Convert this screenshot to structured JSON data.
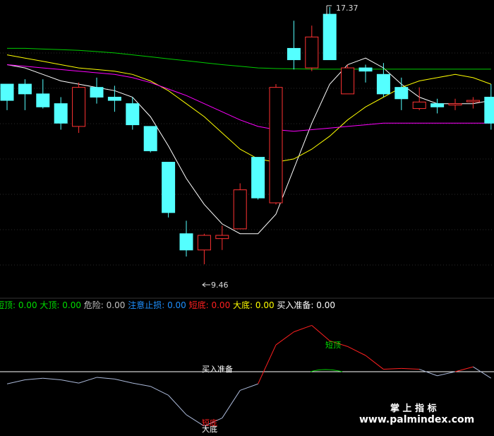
{
  "chart_data": {
    "type": "candlestick",
    "grid": "horizontal dotted",
    "price_range": [
      9.0,
      17.7
    ],
    "annotations": {
      "high_label": "17.37",
      "low_label": "9.46"
    },
    "candles": [
      {
        "o": 15.0,
        "h": 15.0,
        "l": 14.2,
        "c": 14.5
      },
      {
        "o": 15.0,
        "h": 15.15,
        "l": 14.2,
        "c": 14.7
      },
      {
        "o": 14.7,
        "h": 15.15,
        "l": 14.25,
        "c": 14.3
      },
      {
        "o": 14.4,
        "h": 14.6,
        "l": 13.6,
        "c": 13.8
      },
      {
        "o": 13.7,
        "h": 15.05,
        "l": 13.5,
        "c": 14.9
      },
      {
        "o": 14.9,
        "h": 15.2,
        "l": 14.4,
        "c": 14.6
      },
      {
        "o": 14.6,
        "h": 14.95,
        "l": 14.15,
        "c": 14.5
      },
      {
        "o": 14.4,
        "h": 14.6,
        "l": 13.6,
        "c": 13.75
      },
      {
        "o": 13.7,
        "h": 13.7,
        "l": 12.9,
        "c": 12.95
      },
      {
        "o": 12.6,
        "h": 12.6,
        "l": 10.9,
        "c": 11.05
      },
      {
        "o": 10.4,
        "h": 10.8,
        "l": 9.7,
        "c": 9.9
      },
      {
        "o": 9.9,
        "h": 10.4,
        "l": 9.46,
        "c": 10.35
      },
      {
        "o": 10.25,
        "h": 10.65,
        "l": 9.9,
        "c": 10.35
      },
      {
        "o": 10.55,
        "h": 11.95,
        "l": 10.55,
        "c": 11.75
      },
      {
        "o": 12.75,
        "h": 12.75,
        "l": 11.45,
        "c": 11.5
      },
      {
        "o": 11.35,
        "h": 15.0,
        "l": 11.3,
        "c": 14.9
      },
      {
        "o": 16.1,
        "h": 16.95,
        "l": 15.45,
        "c": 15.75
      },
      {
        "o": 15.5,
        "h": 16.8,
        "l": 15.4,
        "c": 16.45
      },
      {
        "o": 17.15,
        "h": 17.37,
        "l": 15.75,
        "c": 15.75
      },
      {
        "o": 14.7,
        "h": 15.6,
        "l": 14.7,
        "c": 15.5
      },
      {
        "o": 15.5,
        "h": 15.6,
        "l": 15.05,
        "c": 15.4
      },
      {
        "o": 15.3,
        "h": 15.65,
        "l": 14.6,
        "c": 14.7
      },
      {
        "o": 14.9,
        "h": 15.2,
        "l": 14.2,
        "c": 14.55
      },
      {
        "o": 14.25,
        "h": 14.9,
        "l": 14.2,
        "c": 14.45
      },
      {
        "o": 14.4,
        "h": 14.55,
        "l": 14.1,
        "c": 14.3
      },
      {
        "o": 14.4,
        "h": 14.55,
        "l": 14.2,
        "c": 14.4
      },
      {
        "o": 14.5,
        "h": 14.6,
        "l": 14.25,
        "c": 14.5
      },
      {
        "o": 14.6,
        "h": 15.0,
        "l": 13.6,
        "c": 13.8
      }
    ],
    "moving_averages": [
      {
        "color": "#ffffff",
        "values": [
          15.6,
          15.5,
          15.3,
          15.1,
          15.0,
          14.9,
          14.8,
          14.6,
          14.0,
          13.1,
          12.1,
          11.3,
          10.7,
          10.4,
          10.4,
          11.0,
          12.4,
          13.8,
          15.0,
          15.6,
          15.8,
          15.5,
          15.0,
          14.6,
          14.4,
          14.4,
          14.4,
          14.5
        ]
      },
      {
        "color": "#ffff00",
        "values": [
          15.9,
          15.8,
          15.7,
          15.6,
          15.5,
          15.45,
          15.4,
          15.3,
          15.1,
          14.8,
          14.4,
          14.0,
          13.5,
          13.0,
          12.7,
          12.6,
          12.7,
          13.0,
          13.4,
          13.9,
          14.3,
          14.6,
          14.9,
          15.1,
          15.2,
          15.3,
          15.2,
          15.0
        ]
      },
      {
        "color": "#ff00ff",
        "values": [
          15.6,
          15.55,
          15.5,
          15.45,
          15.4,
          15.35,
          15.3,
          15.2,
          15.05,
          14.85,
          14.65,
          14.4,
          14.15,
          13.9,
          13.7,
          13.6,
          13.55,
          13.6,
          13.65,
          13.7,
          13.75,
          13.8,
          13.8,
          13.8,
          13.8,
          13.8,
          13.8,
          13.8
        ]
      },
      {
        "color": "#00cc00",
        "values": [
          16.1,
          16.1,
          16.08,
          16.06,
          16.04,
          16.0,
          15.96,
          15.9,
          15.84,
          15.78,
          15.72,
          15.66,
          15.6,
          15.55,
          15.5,
          15.48,
          15.47,
          15.46,
          15.46,
          15.46,
          15.46,
          15.46,
          15.46,
          15.46,
          15.46,
          15.46,
          15.46,
          15.46
        ]
      }
    ],
    "indicator": {
      "legend": [
        {
          "label": "短顶: ",
          "value": "0.00",
          "color": "#00dd00"
        },
        {
          "label": "大顶: ",
          "value": "0.00",
          "color": "#00dd00"
        },
        {
          "label": "危险: ",
          "value": "0.00",
          "color": "#c0c0c0"
        },
        {
          "label": "注意止损: ",
          "value": "0.00",
          "color": "#1e90ff"
        },
        {
          "label": "短底: ",
          "value": "0.00",
          "color": "#ff2020"
        },
        {
          "label": "大底: ",
          "value": "0.00",
          "color": "#ffff00"
        },
        {
          "label": "买入准备: ",
          "value": "0.00",
          "color": "#ffffff"
        }
      ],
      "line": [
        -1.5,
        -1.0,
        -0.8,
        -1.0,
        -1.4,
        -0.7,
        -0.9,
        -1.4,
        -1.8,
        -2.9,
        -5.3,
        -6.7,
        -5.7,
        -2.3,
        -1.5,
        3.3,
        4.9,
        5.7,
        3.8,
        3.1,
        2.0,
        0.3,
        0.4,
        0.3,
        -0.5,
        0.0,
        0.6,
        -0.8
      ],
      "zero_label": "买入准备",
      "labels": {
        "short_top": "短顶",
        "short_bottom": "短底",
        "big_bottom": "大底"
      }
    }
  },
  "watermark": {
    "cn": "掌 上 指 标",
    "url": "www.palmindex.com"
  },
  "colors": {
    "up": "#ff3232",
    "down": "#54ffff",
    "background": "#000000"
  }
}
